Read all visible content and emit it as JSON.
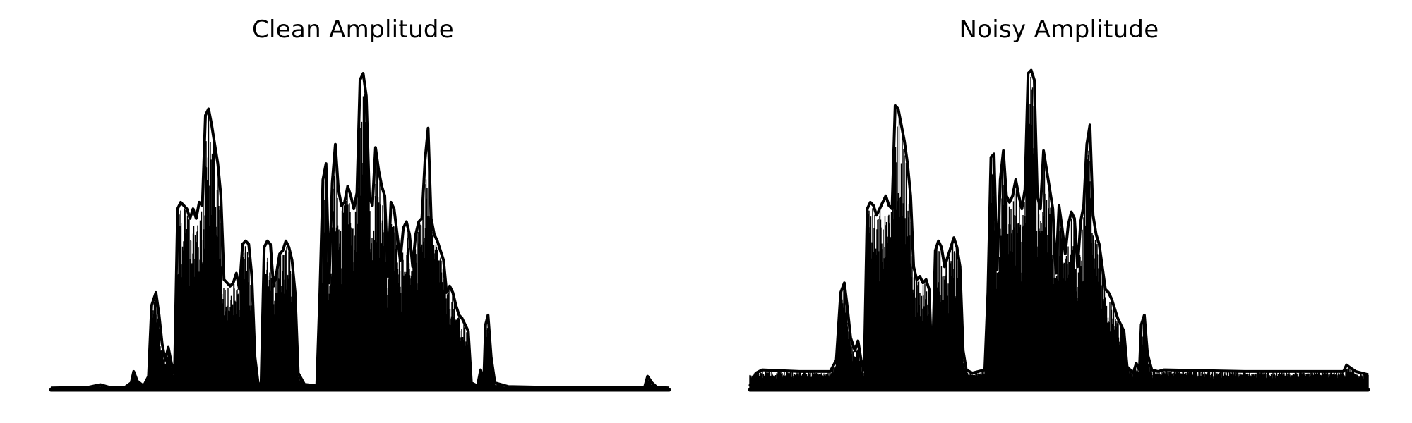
{
  "chart_data": [
    {
      "type": "area",
      "title": "Clean Amplitude",
      "xlabel": "",
      "ylabel": "",
      "axes_visible": false,
      "grid": false,
      "color": "#000000",
      "x_range": [
        0,
        1
      ],
      "ylim": [
        0,
        1
      ],
      "noise_floor": 0.006,
      "series": [
        {
          "envelope": [
            [
              0.0,
              0.004
            ],
            [
              0.06,
              0.006
            ],
            [
              0.08,
              0.014
            ],
            [
              0.095,
              0.006
            ],
            [
              0.12,
              0.006
            ],
            [
              0.13,
              0.02
            ],
            [
              0.134,
              0.055
            ],
            [
              0.14,
              0.025
            ],
            [
              0.15,
              0.01
            ],
            [
              0.158,
              0.04
            ],
            [
              0.163,
              0.26
            ],
            [
              0.17,
              0.3
            ],
            [
              0.175,
              0.23
            ],
            [
              0.18,
              0.14
            ],
            [
              0.185,
              0.09
            ],
            [
              0.19,
              0.13
            ],
            [
              0.195,
              0.08
            ],
            [
              0.2,
              0.05
            ],
            [
              0.205,
              0.56
            ],
            [
              0.21,
              0.58
            ],
            [
              0.215,
              0.57
            ],
            [
              0.22,
              0.56
            ],
            [
              0.225,
              0.53
            ],
            [
              0.23,
              0.56
            ],
            [
              0.235,
              0.53
            ],
            [
              0.24,
              0.58
            ],
            [
              0.245,
              0.57
            ],
            [
              0.25,
              0.85
            ],
            [
              0.255,
              0.87
            ],
            [
              0.26,
              0.82
            ],
            [
              0.265,
              0.76
            ],
            [
              0.27,
              0.7
            ],
            [
              0.275,
              0.6
            ],
            [
              0.28,
              0.34
            ],
            [
              0.285,
              0.33
            ],
            [
              0.29,
              0.32
            ],
            [
              0.295,
              0.33
            ],
            [
              0.3,
              0.36
            ],
            [
              0.305,
              0.31
            ],
            [
              0.31,
              0.45
            ],
            [
              0.315,
              0.46
            ],
            [
              0.32,
              0.45
            ],
            [
              0.325,
              0.35
            ],
            [
              0.33,
              0.1
            ],
            [
              0.335,
              0.02
            ],
            [
              0.34,
              0.01
            ],
            [
              0.345,
              0.44
            ],
            [
              0.35,
              0.46
            ],
            [
              0.355,
              0.45
            ],
            [
              0.36,
              0.32
            ],
            [
              0.365,
              0.36
            ],
            [
              0.37,
              0.42
            ],
            [
              0.375,
              0.43
            ],
            [
              0.38,
              0.46
            ],
            [
              0.385,
              0.44
            ],
            [
              0.39,
              0.4
            ],
            [
              0.395,
              0.3
            ],
            [
              0.4,
              0.05
            ],
            [
              0.41,
              0.015
            ],
            [
              0.43,
              0.01
            ],
            [
              0.435,
              0.3
            ],
            [
              0.44,
              0.65
            ],
            [
              0.445,
              0.7
            ],
            [
              0.45,
              0.33
            ],
            [
              0.455,
              0.64
            ],
            [
              0.46,
              0.76
            ],
            [
              0.465,
              0.62
            ],
            [
              0.47,
              0.57
            ],
            [
              0.475,
              0.58
            ],
            [
              0.48,
              0.63
            ],
            [
              0.485,
              0.6
            ],
            [
              0.49,
              0.56
            ],
            [
              0.495,
              0.61
            ],
            [
              0.5,
              0.96
            ],
            [
              0.505,
              0.98
            ],
            [
              0.51,
              0.91
            ],
            [
              0.515,
              0.6
            ],
            [
              0.52,
              0.57
            ],
            [
              0.525,
              0.75
            ],
            [
              0.53,
              0.68
            ],
            [
              0.535,
              0.63
            ],
            [
              0.54,
              0.6
            ],
            [
              0.545,
              0.35
            ],
            [
              0.55,
              0.58
            ],
            [
              0.555,
              0.56
            ],
            [
              0.56,
              0.48
            ],
            [
              0.565,
              0.4
            ],
            [
              0.57,
              0.5
            ],
            [
              0.575,
              0.52
            ],
            [
              0.58,
              0.48
            ],
            [
              0.585,
              0.38
            ],
            [
              0.59,
              0.48
            ],
            [
              0.595,
              0.52
            ],
            [
              0.6,
              0.53
            ],
            [
              0.605,
              0.71
            ],
            [
              0.61,
              0.81
            ],
            [
              0.615,
              0.53
            ],
            [
              0.62,
              0.48
            ],
            [
              0.625,
              0.46
            ],
            [
              0.63,
              0.43
            ],
            [
              0.635,
              0.4
            ],
            [
              0.64,
              0.3
            ],
            [
              0.645,
              0.32
            ],
            [
              0.65,
              0.3
            ],
            [
              0.655,
              0.26
            ],
            [
              0.66,
              0.23
            ],
            [
              0.665,
              0.22
            ],
            [
              0.67,
              0.2
            ],
            [
              0.675,
              0.18
            ],
            [
              0.68,
              0.02
            ],
            [
              0.69,
              0.01
            ],
            [
              0.695,
              0.06
            ],
            [
              0.7,
              0.02
            ],
            [
              0.703,
              0.2
            ],
            [
              0.707,
              0.23
            ],
            [
              0.712,
              0.1
            ],
            [
              0.718,
              0.02
            ],
            [
              0.74,
              0.008
            ],
            [
              0.8,
              0.006
            ],
            [
              0.9,
              0.006
            ],
            [
              0.96,
              0.006
            ],
            [
              0.965,
              0.04
            ],
            [
              0.972,
              0.02
            ],
            [
              0.98,
              0.006
            ],
            [
              1.0,
              0.004
            ]
          ]
        }
      ]
    },
    {
      "type": "area",
      "title": "Noisy Amplitude",
      "xlabel": "",
      "ylabel": "",
      "axes_visible": false,
      "grid": false,
      "color": "#000000",
      "x_range": [
        0,
        1
      ],
      "ylim": [
        0,
        1
      ],
      "noise_floor": 0.05,
      "series": [
        {
          "envelope": [
            [
              0.0,
              0.01
            ],
            [
              0.01,
              0.05
            ],
            [
              0.02,
              0.06
            ],
            [
              0.08,
              0.055
            ],
            [
              0.13,
              0.055
            ],
            [
              0.14,
              0.09
            ],
            [
              0.147,
              0.3
            ],
            [
              0.153,
              0.33
            ],
            [
              0.158,
              0.25
            ],
            [
              0.163,
              0.16
            ],
            [
              0.17,
              0.12
            ],
            [
              0.175,
              0.15
            ],
            [
              0.18,
              0.09
            ],
            [
              0.185,
              0.06
            ],
            [
              0.19,
              0.56
            ],
            [
              0.195,
              0.58
            ],
            [
              0.2,
              0.57
            ],
            [
              0.205,
              0.54
            ],
            [
              0.21,
              0.56
            ],
            [
              0.215,
              0.58
            ],
            [
              0.22,
              0.6
            ],
            [
              0.225,
              0.57
            ],
            [
              0.23,
              0.56
            ],
            [
              0.235,
              0.88
            ],
            [
              0.24,
              0.87
            ],
            [
              0.245,
              0.82
            ],
            [
              0.25,
              0.77
            ],
            [
              0.255,
              0.7
            ],
            [
              0.26,
              0.6
            ],
            [
              0.265,
              0.38
            ],
            [
              0.27,
              0.34
            ],
            [
              0.275,
              0.35
            ],
            [
              0.28,
              0.33
            ],
            [
              0.285,
              0.34
            ],
            [
              0.29,
              0.31
            ],
            [
              0.295,
              0.06
            ],
            [
              0.3,
              0.43
            ],
            [
              0.305,
              0.46
            ],
            [
              0.31,
              0.44
            ],
            [
              0.315,
              0.38
            ],
            [
              0.32,
              0.41
            ],
            [
              0.325,
              0.44
            ],
            [
              0.33,
              0.47
            ],
            [
              0.335,
              0.44
            ],
            [
              0.34,
              0.38
            ],
            [
              0.345,
              0.12
            ],
            [
              0.35,
              0.06
            ],
            [
              0.36,
              0.05
            ],
            [
              0.38,
              0.06
            ],
            [
              0.385,
              0.3
            ],
            [
              0.39,
              0.72
            ],
            [
              0.395,
              0.73
            ],
            [
              0.4,
              0.37
            ],
            [
              0.405,
              0.65
            ],
            [
              0.41,
              0.74
            ],
            [
              0.415,
              0.6
            ],
            [
              0.42,
              0.58
            ],
            [
              0.425,
              0.6
            ],
            [
              0.43,
              0.65
            ],
            [
              0.435,
              0.6
            ],
            [
              0.44,
              0.56
            ],
            [
              0.445,
              0.62
            ],
            [
              0.45,
              0.98
            ],
            [
              0.455,
              0.99
            ],
            [
              0.46,
              0.96
            ],
            [
              0.465,
              0.6
            ],
            [
              0.47,
              0.56
            ],
            [
              0.475,
              0.74
            ],
            [
              0.48,
              0.68
            ],
            [
              0.485,
              0.62
            ],
            [
              0.49,
              0.56
            ],
            [
              0.495,
              0.36
            ],
            [
              0.5,
              0.57
            ],
            [
              0.505,
              0.5
            ],
            [
              0.51,
              0.42
            ],
            [
              0.515,
              0.51
            ],
            [
              0.52,
              0.55
            ],
            [
              0.525,
              0.53
            ],
            [
              0.53,
              0.38
            ],
            [
              0.535,
              0.52
            ],
            [
              0.54,
              0.57
            ],
            [
              0.545,
              0.76
            ],
            [
              0.55,
              0.82
            ],
            [
              0.555,
              0.54
            ],
            [
              0.56,
              0.48
            ],
            [
              0.565,
              0.45
            ],
            [
              0.57,
              0.38
            ],
            [
              0.575,
              0.31
            ],
            [
              0.58,
              0.3
            ],
            [
              0.585,
              0.28
            ],
            [
              0.59,
              0.25
            ],
            [
              0.595,
              0.22
            ],
            [
              0.6,
              0.2
            ],
            [
              0.605,
              0.18
            ],
            [
              0.61,
              0.07
            ],
            [
              0.62,
              0.05
            ],
            [
              0.625,
              0.08
            ],
            [
              0.63,
              0.06
            ],
            [
              0.633,
              0.2
            ],
            [
              0.638,
              0.23
            ],
            [
              0.643,
              0.11
            ],
            [
              0.65,
              0.06
            ],
            [
              0.66,
              0.055
            ],
            [
              0.67,
              0.06
            ],
            [
              0.8,
              0.055
            ],
            [
              0.9,
              0.055
            ],
            [
              0.96,
              0.055
            ],
            [
              0.965,
              0.075
            ],
            [
              0.972,
              0.065
            ],
            [
              0.98,
              0.055
            ],
            [
              1.0,
              0.045
            ]
          ]
        }
      ]
    }
  ]
}
